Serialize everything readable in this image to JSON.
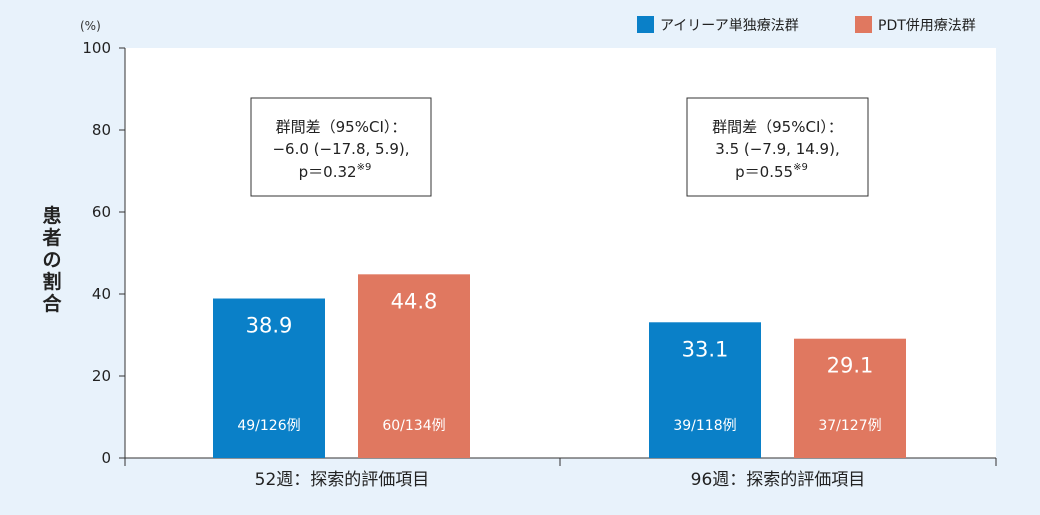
{
  "chart_data": {
    "type": "bar",
    "unit_label": "(%)",
    "ylabel": "患者の割合",
    "ylim": [
      0,
      100
    ],
    "yticks": [
      0,
      20,
      40,
      60,
      80,
      100
    ],
    "categories": [
      "52週：探索的評価項目",
      "96週：探索的評価項目"
    ],
    "series": [
      {
        "name": "アイリーア単独療法群",
        "color": "#0a80c8",
        "values": [
          38.9,
          33.1
        ],
        "value_labels": [
          "38.9",
          "33.1"
        ],
        "counts": [
          "49/126例",
          "39/118例"
        ]
      },
      {
        "name": "PDT併用療法群",
        "color": "#e07860",
        "values": [
          44.8,
          29.1
        ],
        "value_labels": [
          "44.8",
          "29.1"
        ],
        "counts": [
          "60/134例",
          "37/127例"
        ]
      }
    ],
    "annotations": [
      {
        "line1": "群間差（95%CI）：",
        "line2": "−6.0 (−17.8, 5.9),",
        "line3": "p＝0.32",
        "sup": "※9"
      },
      {
        "line1": "群間差（95%CI）：",
        "line2": "3.5 (−7.9, 14.9),",
        "line3": "p＝0.55",
        "sup": "※9"
      }
    ],
    "grid": false,
    "legend_position": "top-right",
    "background_color": "#e8f2fb",
    "plot_background_color": "#ffffff"
  }
}
